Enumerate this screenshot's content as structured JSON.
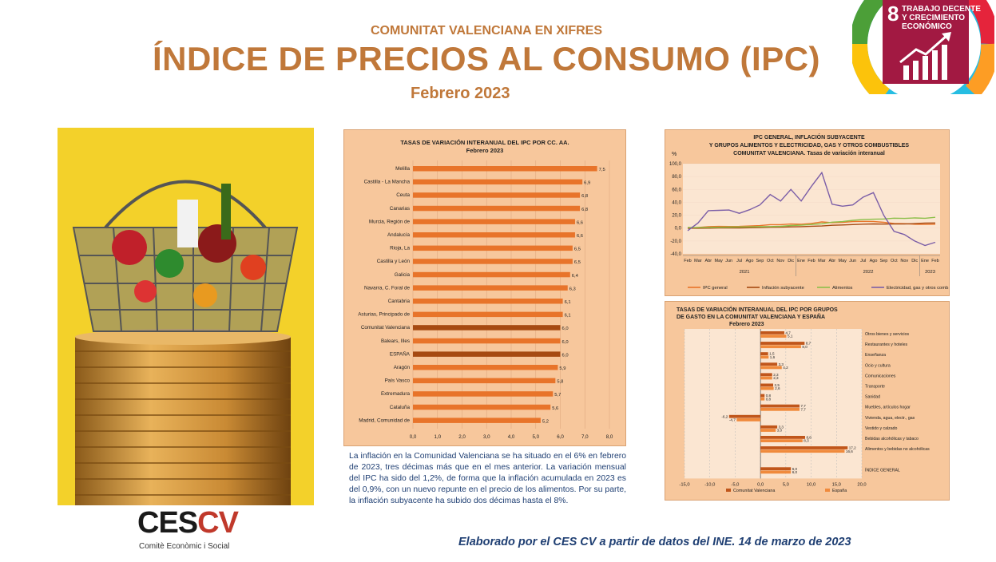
{
  "header": {
    "kicker": "COMUNITAT VALENCIANA EN XIFRES",
    "title": "ÍNDICE DE PRECIOS AL CONSUMO (IPC)",
    "subtitle": "Febrero 2023"
  },
  "sdg_badge": {
    "number": "8",
    "line1": "TRABAJO DECENTE",
    "line2": "Y CRECIMIENTO",
    "line3": "ECONÓMICO",
    "color": "#a21942"
  },
  "colors": {
    "accent": "#c0783a",
    "panel_bg": "#f7c79c",
    "bar_orange": "#e8742a",
    "bar_highlight": "#a64a12",
    "text_blue": "#1f3f73"
  },
  "paragraph": "La inflación en la Comunidad Valenciana se ha situado en el 6% en febrero de 2023, tres décimas más que en el mes anterior. La variación mensual del IPC ha sido del 1,2%, de forma que la inflación acumulada en 2023 es del 0,9%, con un nuevo repunte en el precio de los alimentos. Por su parte, la inflación subyacente ha subido dos décimas hasta el 8%.",
  "logo": {
    "ces": "CES",
    "cv": "CV",
    "sub": "Comitè Econòmic i Social"
  },
  "footer": "Elaborado por el CES CV a partir de datos del INE. 14 de marzo de 2023",
  "chart_data": [
    {
      "type": "bar",
      "orientation": "horizontal",
      "title": "TASAS DE VARIACIÓN INTERANUAL DEL IPC POR CC. AA.",
      "subtitle": "Febrero 2023",
      "categories": [
        "Melilla",
        "Castilla - La Mancha",
        "Ceuta",
        "Canarias",
        "Murcia, Región de",
        "Andalucía",
        "Rioja, La",
        "Castilla y León",
        "Galicia",
        "Navarra, C. Foral de",
        "Cantabria",
        "Asturias, Principado de",
        "Comunitat Valenciana",
        "Balears, Illes",
        "ESPAÑA",
        "Aragón",
        "País Vasco",
        "Extremadura",
        "Cataluña",
        "Madrid, Comunidad de"
      ],
      "values": [
        7.5,
        6.9,
        6.8,
        6.8,
        6.6,
        6.6,
        6.5,
        6.5,
        6.4,
        6.3,
        6.1,
        6.1,
        6.0,
        6.0,
        6.0,
        5.9,
        5.8,
        5.7,
        5.6,
        5.2
      ],
      "value_labels": [
        "7,5",
        "6,9",
        "6,8",
        "6,8",
        "6,6",
        "6,6",
        "6,5",
        "6,5",
        "6,4",
        "6,3",
        "6,1",
        "6,1",
        "6,0",
        "6,0",
        "6,0",
        "5,9",
        "5,8",
        "5,7",
        "5,6",
        "5,2"
      ],
      "highlighted": [
        "Comunitat Valenciana",
        "ESPAÑA"
      ],
      "xlim": [
        0,
        8
      ],
      "xticks": [
        "0,0",
        "1,0",
        "2,0",
        "3,0",
        "4,0",
        "5,0",
        "6,0",
        "7,0",
        "8,0"
      ]
    },
    {
      "type": "line",
      "title_lines": [
        "IPC GENERAL, INFLACIÓN SUBYACENTE",
        "Y  GRUPOS ALIMENTOS Y ELECTRICIDAD, GAS Y OTROS COMBUSTIBLES",
        "COMUNITAT VALENCIANA. Tasas de variación interanual"
      ],
      "ylabel": "%",
      "ylim": [
        -40,
        100
      ],
      "yticks": [
        "100,0",
        "80,0",
        "60,0",
        "40,0",
        "20,0",
        "0,0",
        "-20,0",
        "-40,0"
      ],
      "x": [
        "Feb",
        "Mar",
        "Abr",
        "May",
        "Jun",
        "Jul",
        "Ago",
        "Sep",
        "Oct",
        "Nov",
        "Dic",
        "Ene",
        "Feb",
        "Mar",
        "Abr",
        "May",
        "Jun",
        "Jul",
        "Ago",
        "Sep",
        "Oct",
        "Nov",
        "Dic",
        "Ene",
        "Feb"
      ],
      "year_labels": [
        "2021",
        "2022",
        "2023"
      ],
      "series": [
        {
          "name": "IPC general",
          "color": "#e8742a",
          "values": [
            -0.4,
            1.0,
            2.2,
            2.6,
            2.5,
            2.6,
            3.2,
            3.8,
            5.3,
            5.4,
            6.3,
            5.9,
            7.2,
            9.6,
            8.4,
            8.8,
            10.0,
            10.4,
            10.3,
            8.9,
            7.2,
            6.8,
            6.0,
            5.7,
            6.0
          ]
        },
        {
          "name": "Inflación subyacente",
          "color": "#a64a12",
          "values": [
            -0.1,
            -0.2,
            -0.1,
            0.1,
            0.2,
            0.3,
            0.5,
            0.8,
            1.2,
            1.4,
            1.9,
            2.3,
            2.9,
            3.3,
            4.4,
            4.9,
            5.5,
            6.1,
            6.4,
            6.2,
            6.3,
            6.3,
            7.0,
            7.8,
            8.0
          ]
        },
        {
          "name": "Alimentos",
          "color": "#8cbf4a",
          "values": [
            1.0,
            0.8,
            1.0,
            1.3,
            1.5,
            1.8,
            1.9,
            2.1,
            2.4,
            2.8,
            4.0,
            4.5,
            5.6,
            6.7,
            9.2,
            10.0,
            12.0,
            13.4,
            13.8,
            14.2,
            15.4,
            15.0,
            15.7,
            15.3,
            16.7
          ]
        },
        {
          "name": "Electricidad, gas y otros comb.",
          "color": "#7b5ea7",
          "values": [
            -4.0,
            8.0,
            27.0,
            27.5,
            28.0,
            23.0,
            28.5,
            36.0,
            52.0,
            42.0,
            60.0,
            42.0,
            65.0,
            86.0,
            37.0,
            34.0,
            36.0,
            48.0,
            55.0,
            20.0,
            -5.0,
            -10.0,
            -20.0,
            -27.0,
            -22.0
          ]
        }
      ]
    },
    {
      "type": "bar",
      "orientation": "horizontal",
      "title_lines": [
        "TASAS DE VARIACIÓN INTERANUAL DEL IPC POR GRUPOS",
        "DE GASTO EN LA COMUNITAT VALENCIANA Y ESPAÑA",
        "Febrero 2023"
      ],
      "categories": [
        "Otros bienes y servicios",
        "Restaurantes y hoteles",
        "Enseñanza",
        "Ocio y cultura",
        "Comunicaciones",
        "Transporte",
        "Sanidad",
        "Muebles, artículos hogar",
        "Vivienda, agua, electr., gas",
        "Vestido y calzado",
        "Bebidas alcohólicas y tabaco",
        "Alimentos y bebidas no alcohólicas",
        "ÍNDICE GENERAL"
      ],
      "series": [
        {
          "name": "Comunitat Valenciana",
          "color": "#c0561b",
          "values": [
            4.7,
            8.7,
            1.5,
            3.3,
            2.3,
            2.5,
            0.8,
            7.7,
            -6.2,
            3.3,
            8.8,
            17.2,
            6.0
          ],
          "labels": [
            "4,7",
            "8,7",
            "1,5",
            "3,3",
            "2,3",
            "2,5",
            "0,8",
            "7,7",
            "-6,2",
            "3,3",
            "8,8",
            "17,2",
            "6,0"
          ]
        },
        {
          "name": "España",
          "color": "#f08a3c",
          "values": [
            5.1,
            8.0,
            1.6,
            4.2,
            2.3,
            2.6,
            0.8,
            7.7,
            -4.7,
            3.0,
            8.3,
            16.6,
            6.0
          ],
          "labels": [
            "5,1",
            "8,0",
            "1,6",
            "4,2",
            "2,3",
            "2,6",
            "0,8",
            "7,7",
            "-4,7",
            "3,0",
            "8,3",
            "16,6",
            "6,0"
          ]
        }
      ],
      "xlim": [
        -15,
        20
      ],
      "xticks": [
        "-15,0",
        "-10,0",
        "-5,0",
        "0,0",
        "5,0",
        "10,0",
        "15,0",
        "20,0"
      ]
    }
  ]
}
